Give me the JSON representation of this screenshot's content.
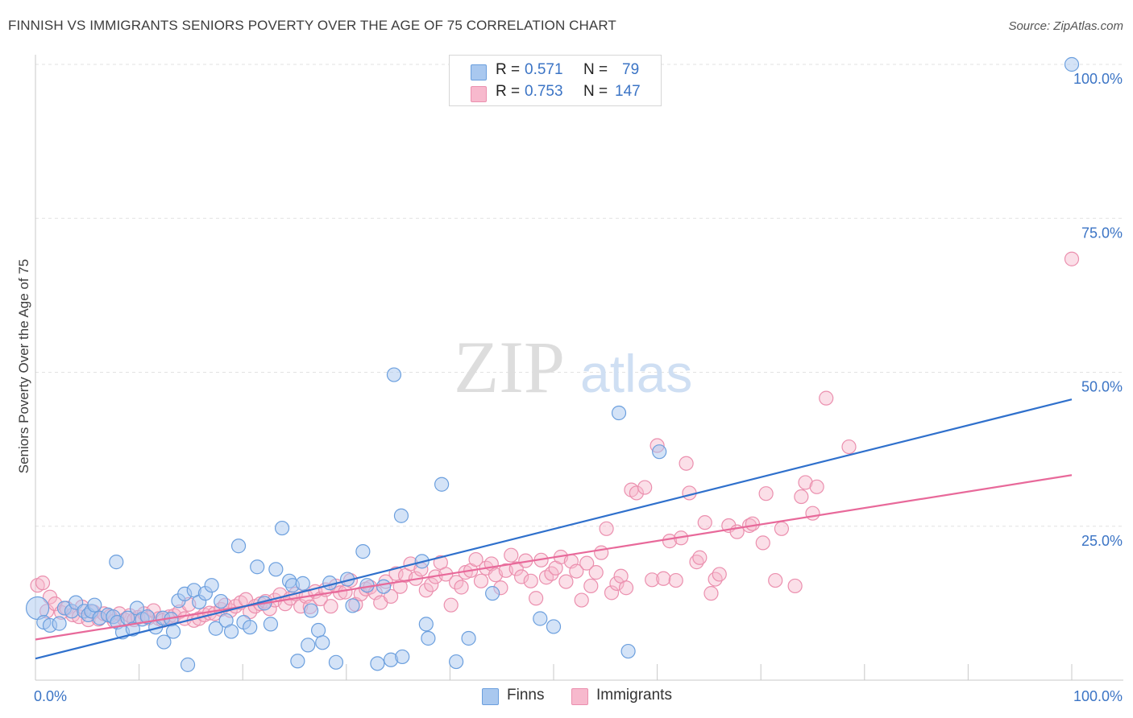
{
  "title": "FINNISH VS IMMIGRANTS SENIORS POVERTY OVER THE AGE OF 75 CORRELATION CHART",
  "source": "Source: ZipAtlas.com",
  "watermark": {
    "zip": "ZIP",
    "atlas": "atlas"
  },
  "legend_top": [
    {
      "r_label": "R =",
      "r_value": "0.571",
      "n_label": "N =",
      "n_value": "79",
      "color": "#a9c8ef"
    },
    {
      "r_label": "R =",
      "r_value": "0.753",
      "n_label": "N =",
      "n_value": "147",
      "color": "#f7b9cd"
    }
  ],
  "legend_bottom": [
    {
      "label": "Finns",
      "color": "#a9c8ef"
    },
    {
      "label": "Immigrants",
      "color": "#f7b9cd"
    }
  ],
  "chart_data": {
    "type": "scatter",
    "title": "FINNISH VS IMMIGRANTS SENIORS POVERTY OVER THE AGE OF 75 CORRELATION CHART",
    "xlabel": "",
    "ylabel": "Seniors Poverty Over the Age of 75",
    "xlim": [
      0,
      100
    ],
    "ylim": [
      0,
      100
    ],
    "x_tick_labels": [
      "0.0%",
      "100.0%"
    ],
    "y_ticks": [
      25,
      50,
      75,
      100
    ],
    "y_tick_labels": [
      "25.0%",
      "50.0%",
      "75.0%",
      "100.0%"
    ],
    "grid": true,
    "colors": {
      "finns_stroke": "#6b9fde",
      "finns_fill": "#a9c8ef",
      "immigrants_stroke": "#eb8fae",
      "immigrants_fill": "#f7b9cd",
      "finns_line": "#2f70cc",
      "immigrants_line": "#e8699a",
      "tick_label": "#3b74c5"
    },
    "series": [
      {
        "name": "Finns",
        "r": 0.571,
        "n": 79,
        "trend": {
          "x": [
            0,
            100
          ],
          "y": [
            3.5,
            45.6
          ]
        },
        "points": [
          [
            0.2,
            11.7
          ],
          [
            0.8,
            9.4
          ],
          [
            1.4,
            8.9
          ],
          [
            2.3,
            9.2
          ],
          [
            2.8,
            11.7
          ],
          [
            3.5,
            11.2
          ],
          [
            3.9,
            12.6
          ],
          [
            4.7,
            11.2
          ],
          [
            5.1,
            10.6
          ],
          [
            5.4,
            11.2
          ],
          [
            5.7,
            12.2
          ],
          [
            6.2,
            10.1
          ],
          [
            7.0,
            10.6
          ],
          [
            7.5,
            10.3
          ],
          [
            7.9,
            9.4
          ],
          [
            7.8,
            19.2
          ],
          [
            8.4,
            7.8
          ],
          [
            8.9,
            10.1
          ],
          [
            9.4,
            8.3
          ],
          [
            9.8,
            11.7
          ],
          [
            10.3,
            9.9
          ],
          [
            10.8,
            10.3
          ],
          [
            11.6,
            8.6
          ],
          [
            12.3,
            10.1
          ],
          [
            12.4,
            6.2
          ],
          [
            13.1,
            9.9
          ],
          [
            13.3,
            7.9
          ],
          [
            13.8,
            12.9
          ],
          [
            14.4,
            14.0
          ],
          [
            14.7,
            2.5
          ],
          [
            15.3,
            14.6
          ],
          [
            15.8,
            12.7
          ],
          [
            16.4,
            14.1
          ],
          [
            17.0,
            15.4
          ],
          [
            17.4,
            8.4
          ],
          [
            17.9,
            12.8
          ],
          [
            18.4,
            9.7
          ],
          [
            18.9,
            7.9
          ],
          [
            19.6,
            21.8
          ],
          [
            20.1,
            9.4
          ],
          [
            20.7,
            8.6
          ],
          [
            21.4,
            18.4
          ],
          [
            22.1,
            12.5
          ],
          [
            22.7,
            9.1
          ],
          [
            23.2,
            18.0
          ],
          [
            23.8,
            24.7
          ],
          [
            24.5,
            16.1
          ],
          [
            24.8,
            15.4
          ],
          [
            25.3,
            3.1
          ],
          [
            25.8,
            15.7
          ],
          [
            26.3,
            5.7
          ],
          [
            26.6,
            11.3
          ],
          [
            27.3,
            8.1
          ],
          [
            27.7,
            6.1
          ],
          [
            28.4,
            15.8
          ],
          [
            29.0,
            2.9
          ],
          [
            30.1,
            16.4
          ],
          [
            30.6,
            12.1
          ],
          [
            31.6,
            20.9
          ],
          [
            32.0,
            15.4
          ],
          [
            33.0,
            2.7
          ],
          [
            33.6,
            15.2
          ],
          [
            34.3,
            3.3
          ],
          [
            34.6,
            49.6
          ],
          [
            35.3,
            26.7
          ],
          [
            35.4,
            3.8
          ],
          [
            37.7,
            9.1
          ],
          [
            37.9,
            6.8
          ],
          [
            37.3,
            19.3
          ],
          [
            39.2,
            31.8
          ],
          [
            40.6,
            3.0
          ],
          [
            41.8,
            6.8
          ],
          [
            44.1,
            14.1
          ],
          [
            48.7,
            10.0
          ],
          [
            50.0,
            8.7
          ],
          [
            56.3,
            43.4
          ],
          [
            57.2,
            4.7
          ],
          [
            60.2,
            37.1
          ],
          [
            100.0,
            100.0
          ]
        ]
      },
      {
        "name": "Immigrants",
        "r": 0.753,
        "n": 147,
        "trend": {
          "x": [
            0,
            100
          ],
          "y": [
            6.6,
            33.3
          ]
        },
        "points": [
          [
            0.2,
            15.4
          ],
          [
            0.7,
            15.8
          ],
          [
            1.1,
            11.2
          ],
          [
            1.4,
            13.5
          ],
          [
            1.9,
            12.4
          ],
          [
            2.5,
            11.0
          ],
          [
            3.0,
            11.7
          ],
          [
            3.6,
            10.6
          ],
          [
            4.2,
            10.3
          ],
          [
            4.5,
            11.9
          ],
          [
            5.1,
            9.8
          ],
          [
            5.6,
            11.1
          ],
          [
            6.1,
            9.9
          ],
          [
            6.6,
            10.8
          ],
          [
            7.2,
            10.4
          ],
          [
            7.6,
            9.6
          ],
          [
            8.1,
            10.8
          ],
          [
            8.6,
            9.8
          ],
          [
            9.1,
            10.5
          ],
          [
            9.5,
            9.8
          ],
          [
            9.9,
            10.2
          ],
          [
            10.5,
            10.8
          ],
          [
            10.9,
            10.1
          ],
          [
            11.4,
            11.3
          ],
          [
            11.9,
            10.0
          ],
          [
            12.3,
            9.7
          ],
          [
            12.9,
            10.3
          ],
          [
            13.4,
            10.5
          ],
          [
            13.9,
            11.1
          ],
          [
            14.4,
            10.0
          ],
          [
            14.8,
            12.3
          ],
          [
            15.3,
            9.7
          ],
          [
            15.8,
            10.0
          ],
          [
            16.3,
            10.6
          ],
          [
            16.8,
            10.9
          ],
          [
            17.3,
            10.8
          ],
          [
            17.9,
            11.5
          ],
          [
            18.3,
            12.2
          ],
          [
            18.8,
            11.3
          ],
          [
            19.3,
            12.0
          ],
          [
            19.8,
            12.6
          ],
          [
            20.3,
            13.1
          ],
          [
            20.7,
            11.1
          ],
          [
            21.2,
            12.0
          ],
          [
            21.7,
            12.4
          ],
          [
            22.2,
            12.8
          ],
          [
            22.6,
            11.6
          ],
          [
            23.1,
            13.0
          ],
          [
            23.6,
            13.9
          ],
          [
            24.1,
            12.4
          ],
          [
            24.6,
            13.3
          ],
          [
            25.1,
            14.0
          ],
          [
            25.6,
            12.0
          ],
          [
            26.1,
            13.6
          ],
          [
            26.5,
            11.9
          ],
          [
            27.0,
            14.4
          ],
          [
            27.5,
            13.2
          ],
          [
            28.0,
            14.7
          ],
          [
            28.5,
            12.0
          ],
          [
            29.0,
            15.3
          ],
          [
            29.4,
            14.2
          ],
          [
            29.9,
            14.3
          ],
          [
            30.4,
            16.2
          ],
          [
            30.9,
            12.3
          ],
          [
            31.4,
            14.0
          ],
          [
            31.9,
            14.8
          ],
          [
            32.3,
            15.1
          ],
          [
            32.8,
            14.2
          ],
          [
            33.3,
            12.6
          ],
          [
            33.8,
            16.0
          ],
          [
            34.3,
            13.6
          ],
          [
            34.8,
            17.3
          ],
          [
            35.2,
            15.2
          ],
          [
            35.7,
            17.0
          ],
          [
            36.2,
            18.9
          ],
          [
            36.7,
            16.5
          ],
          [
            37.2,
            18.0
          ],
          [
            37.7,
            14.6
          ],
          [
            38.2,
            15.5
          ],
          [
            38.6,
            16.8
          ],
          [
            39.1,
            19.1
          ],
          [
            39.6,
            17.2
          ],
          [
            40.1,
            12.2
          ],
          [
            40.6,
            15.9
          ],
          [
            41.1,
            15.1
          ],
          [
            41.5,
            17.5
          ],
          [
            42.0,
            17.8
          ],
          [
            42.5,
            19.6
          ],
          [
            43.0,
            16.1
          ],
          [
            43.5,
            18.2
          ],
          [
            44.0,
            18.9
          ],
          [
            44.4,
            17.1
          ],
          [
            44.9,
            15.0
          ],
          [
            45.4,
            17.8
          ],
          [
            45.9,
            20.3
          ],
          [
            46.4,
            18.1
          ],
          [
            46.9,
            16.8
          ],
          [
            47.3,
            19.4
          ],
          [
            47.8,
            16.1
          ],
          [
            48.3,
            13.3
          ],
          [
            48.8,
            19.5
          ],
          [
            49.3,
            16.7
          ],
          [
            49.8,
            17.3
          ],
          [
            50.2,
            18.2
          ],
          [
            50.7,
            20.0
          ],
          [
            51.2,
            16.0
          ],
          [
            51.7,
            19.3
          ],
          [
            52.2,
            17.7
          ],
          [
            52.7,
            13.0
          ],
          [
            53.2,
            19.0
          ],
          [
            53.6,
            15.3
          ],
          [
            54.1,
            17.5
          ],
          [
            54.6,
            20.7
          ],
          [
            55.1,
            24.6
          ],
          [
            55.6,
            14.2
          ],
          [
            56.1,
            15.7
          ],
          [
            56.5,
            16.9
          ],
          [
            57.0,
            15.0
          ],
          [
            57.5,
            30.9
          ],
          [
            58.0,
            30.4
          ],
          [
            58.8,
            31.3
          ],
          [
            59.5,
            16.3
          ],
          [
            60.0,
            38.1
          ],
          [
            60.6,
            16.5
          ],
          [
            61.2,
            22.6
          ],
          [
            61.8,
            16.2
          ],
          [
            62.3,
            23.1
          ],
          [
            62.8,
            35.2
          ],
          [
            63.1,
            30.4
          ],
          [
            63.8,
            19.2
          ],
          [
            64.1,
            19.9
          ],
          [
            64.6,
            25.6
          ],
          [
            65.2,
            14.1
          ],
          [
            65.6,
            16.4
          ],
          [
            66.0,
            17.2
          ],
          [
            66.9,
            25.1
          ],
          [
            67.7,
            24.1
          ],
          [
            68.9,
            25.1
          ],
          [
            69.2,
            25.4
          ],
          [
            70.2,
            22.3
          ],
          [
            70.5,
            30.3
          ],
          [
            71.4,
            16.2
          ],
          [
            72.0,
            24.6
          ],
          [
            73.3,
            15.3
          ],
          [
            73.9,
            29.8
          ],
          [
            74.3,
            32.1
          ],
          [
            75.0,
            27.1
          ],
          [
            75.4,
            31.4
          ],
          [
            76.3,
            45.8
          ],
          [
            78.5,
            37.9
          ],
          [
            100.0,
            68.4
          ]
        ]
      }
    ]
  }
}
